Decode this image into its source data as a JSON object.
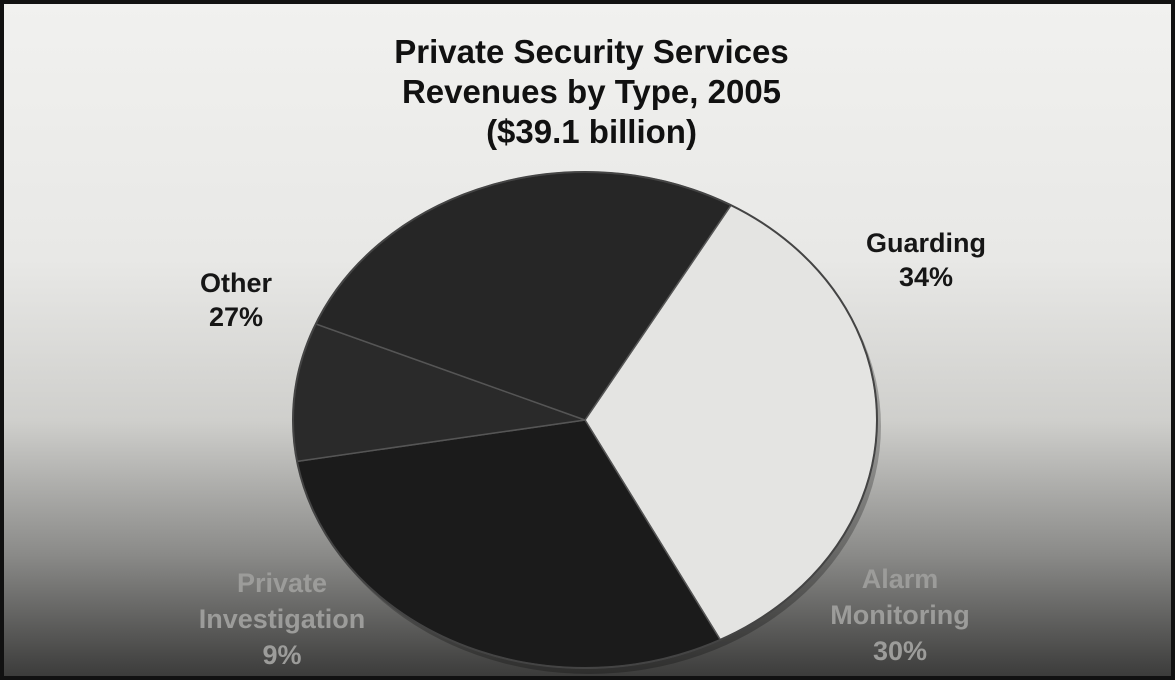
{
  "chart_data": {
    "type": "pie",
    "title": [
      "Private Security Services",
      "Revenues by Type, 2005",
      "($39.1 billion)"
    ],
    "slices": [
      {
        "label": [
          "Guarding",
          "34%"
        ],
        "value": 34,
        "color": "#e4e4e2",
        "text_color": "#161616"
      },
      {
        "label": [
          "Alarm",
          "Monitoring",
          "30%"
        ],
        "value": 30,
        "color": "#1b1b1b",
        "text_color": "#9c9c9a"
      },
      {
        "label": [
          "Private",
          "Investigation",
          "9%"
        ],
        "value": 9,
        "color": "#2a2a2a",
        "text_color": "#9c9c9a"
      },
      {
        "label": [
          "Other",
          "27%"
        ],
        "value": 27,
        "color": "#262626",
        "text_color": "#161616"
      }
    ]
  }
}
